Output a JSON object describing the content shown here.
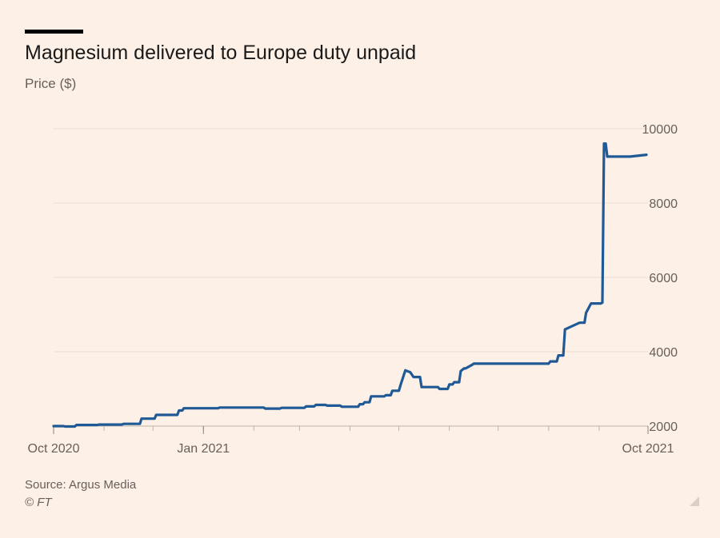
{
  "title": "Magnesium delivered to Europe duty unpaid",
  "subtitle": "Price ($)",
  "source": "Source: Argus Media",
  "credit": "© FT",
  "colors": {
    "background": "#fdf0e6",
    "line": "#1f5a96",
    "grid": "#e8ddd4",
    "axis": "#66605c"
  },
  "chart_data": {
    "type": "line",
    "title": "Magnesium delivered to Europe duty unpaid",
    "ylabel": "Price ($)",
    "xlabel": "",
    "ylim": [
      2000,
      10000
    ],
    "yticks": [
      2000,
      4000,
      6000,
      8000,
      10000
    ],
    "y_axis_side": "right",
    "grid": true,
    "xticks": [
      {
        "x": "2020-10-01",
        "label": "Oct 2020"
      },
      {
        "x": "2021-01-01",
        "label": "Jan 2021"
      },
      {
        "x": "2021-10-01",
        "label": "Oct 2021"
      }
    ],
    "xlim": [
      "2020-10-01",
      "2021-10-01"
    ],
    "series": [
      {
        "x": [
          "2020-10-01",
          "2020-10-07",
          "2020-10-08",
          "2020-10-14",
          "2020-10-15",
          "2020-10-28",
          "2020-10-29",
          "2020-11-12",
          "2020-11-13",
          "2020-11-23",
          "2020-11-24",
          "2020-12-02",
          "2020-12-03",
          "2020-12-16",
          "2020-12-17",
          "2020-12-19",
          "2020-12-20",
          "2021-01-10",
          "2021-01-11",
          "2021-02-07",
          "2021-02-08",
          "2021-02-17",
          "2021-02-18",
          "2021-03-04",
          "2021-03-05",
          "2021-03-10",
          "2021-03-11",
          "2021-03-17",
          "2021-03-18",
          "2021-03-26",
          "2021-03-27",
          "2021-04-06",
          "2021-04-07",
          "2021-04-09",
          "2021-04-10",
          "2021-04-13",
          "2021-04-14",
          "2021-04-22",
          "2021-04-23",
          "2021-04-26",
          "2021-04-27",
          "2021-05-01",
          "2021-05-02",
          "2021-05-05",
          "2021-05-08",
          "2021-05-10",
          "2021-05-14",
          "2021-05-15",
          "2021-05-25",
          "2021-05-26",
          "2021-05-31",
          "2021-06-01",
          "2021-06-03",
          "2021-06-04",
          "2021-06-07",
          "2021-06-08",
          "2021-06-10",
          "2021-06-11",
          "2021-06-15",
          "2021-06-16",
          "2021-07-10",
          "2021-07-11",
          "2021-08-01",
          "2021-08-02",
          "2021-08-05",
          "2021-08-06",
          "2021-08-07",
          "2021-08-08",
          "2021-08-10",
          "2021-08-11",
          "2021-08-20",
          "2021-08-21",
          "2021-08-23",
          "2021-08-24",
          "2021-08-27",
          "2021-09-02",
          "2021-09-03",
          "2021-09-04",
          "2021-09-05",
          "2021-09-06",
          "2021-09-20",
          "2021-09-30"
        ],
        "y": [
          2000,
          2000,
          1990,
          1990,
          2030,
          2030,
          2040,
          2040,
          2060,
          2060,
          2200,
          2200,
          2300,
          2300,
          2420,
          2420,
          2480,
          2480,
          2500,
          2500,
          2470,
          2470,
          2490,
          2490,
          2530,
          2530,
          2570,
          2570,
          2550,
          2550,
          2520,
          2520,
          2590,
          2590,
          2640,
          2640,
          2800,
          2800,
          2830,
          2830,
          2950,
          2950,
          3100,
          3500,
          3450,
          3320,
          3320,
          3050,
          3050,
          3000,
          3000,
          3120,
          3120,
          3180,
          3180,
          3480,
          3550,
          3550,
          3650,
          3680,
          3680,
          3680,
          3680,
          3740,
          3740,
          3740,
          3900,
          3900,
          3900,
          4600,
          4780,
          4780,
          4780,
          5050,
          5300,
          5300,
          5320,
          9600,
          9600,
          9250,
          9250,
          9300
        ]
      }
    ]
  }
}
